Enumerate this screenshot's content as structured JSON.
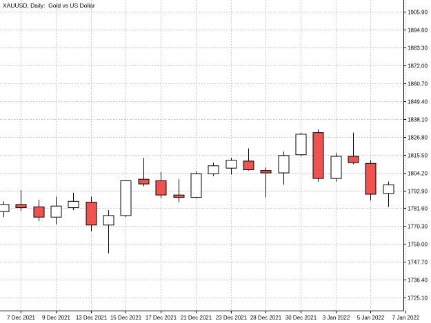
{
  "chart_data": {
    "type": "candlestick",
    "title": "XAUUSD, Daily:  Gold vs US Dollar",
    "colors": {
      "bull_fill": "#ffffff",
      "bear_fill": "#ef5350",
      "outline": "#000000",
      "grid": "#c8c8c8",
      "background": "#ffffff"
    },
    "grid": true,
    "y_axis_position": "right",
    "ylim": [
      1716.8,
      1913.5
    ],
    "y_ticks": [
      "1905.90",
      "1894.60",
      "1883.30",
      "1872.00",
      "1860.70",
      "1849.40",
      "1838.10",
      "1826.80",
      "1815.50",
      "1804.20",
      "1792.90",
      "1781.60",
      "1770.30",
      "1759.00",
      "1747.70",
      "1736.40",
      "1725.10"
    ],
    "x_labels": [
      "7 Dec 2021",
      "9 Dec 2021",
      "13 Dec 2021",
      "15 Dec 2021",
      "17 Dec 2021",
      "21 Dec 2021",
      "23 Dec 2021",
      "28 Dec 2021",
      "30 Dec 2021",
      "3 Jan 2022",
      "5 Jan 2022",
      "7 Jan 2022"
    ],
    "candles": [
      {
        "date": "6 Dec 2021",
        "open": 1779.5,
        "high": 1786.0,
        "low": 1776.0,
        "close": 1784.0
      },
      {
        "date": "7 Dec 2021",
        "open": 1784.0,
        "high": 1793.0,
        "low": 1780.0,
        "close": 1782.0
      },
      {
        "date": "8 Dec 2021",
        "open": 1782.5,
        "high": 1787.0,
        "low": 1773.5,
        "close": 1776.0
      },
      {
        "date": "9 Dec 2021",
        "open": 1776.0,
        "high": 1789.0,
        "low": 1771.5,
        "close": 1783.0
      },
      {
        "date": "10 Dec 2021",
        "open": 1782.0,
        "high": 1791.5,
        "low": 1780.5,
        "close": 1786.0
      },
      {
        "date": "13 Dec 2021",
        "open": 1785.5,
        "high": 1789.0,
        "low": 1767.0,
        "close": 1771.0
      },
      {
        "date": "14 Dec 2021",
        "open": 1771.0,
        "high": 1780.5,
        "low": 1753.0,
        "close": 1777.0
      },
      {
        "date": "15 Dec 2021",
        "open": 1777.0,
        "high": 1799.0,
        "low": 1776.0,
        "close": 1799.0
      },
      {
        "date": "16 Dec 2021",
        "open": 1800.0,
        "high": 1813.5,
        "low": 1795.5,
        "close": 1797.0
      },
      {
        "date": "17 Dec 2021",
        "open": 1799.0,
        "high": 1804.5,
        "low": 1788.0,
        "close": 1790.0
      },
      {
        "date": "20 Dec 2021",
        "open": 1790.0,
        "high": 1800.0,
        "low": 1785.5,
        "close": 1788.5
      },
      {
        "date": "21 Dec 2021",
        "open": 1788.5,
        "high": 1805.0,
        "low": 1788.0,
        "close": 1803.5
      },
      {
        "date": "22 Dec 2021",
        "open": 1803.5,
        "high": 1810.5,
        "low": 1802.0,
        "close": 1808.5
      },
      {
        "date": "23 Dec 2021",
        "open": 1807.0,
        "high": 1813.5,
        "low": 1803.0,
        "close": 1812.0
      },
      {
        "date": "27 Dec 2021",
        "open": 1811.5,
        "high": 1819.5,
        "low": 1805.5,
        "close": 1806.0
      },
      {
        "date": "28 Dec 2021",
        "open": 1805.5,
        "high": 1807.5,
        "low": 1788.5,
        "close": 1804.0
      },
      {
        "date": "29 Dec 2021",
        "open": 1804.0,
        "high": 1817.5,
        "low": 1796.5,
        "close": 1815.0
      },
      {
        "date": "30 Dec 2021",
        "open": 1815.5,
        "high": 1829.5,
        "low": 1814.5,
        "close": 1828.5
      },
      {
        "date": "31 Dec 2021",
        "open": 1829.5,
        "high": 1831.5,
        "low": 1798.5,
        "close": 1800.5
      },
      {
        "date": "3 Jan 2022",
        "open": 1800.5,
        "high": 1816.5,
        "low": 1798.5,
        "close": 1814.5
      },
      {
        "date": "4 Jan 2022",
        "open": 1814.5,
        "high": 1829.5,
        "low": 1809.5,
        "close": 1810.5
      },
      {
        "date": "5 Jan 2022",
        "open": 1810.0,
        "high": 1812.0,
        "low": 1786.5,
        "close": 1790.5
      },
      {
        "date": "6 Jan 2022",
        "open": 1791.0,
        "high": 1798.5,
        "low": 1782.5,
        "close": 1796.5
      }
    ]
  }
}
